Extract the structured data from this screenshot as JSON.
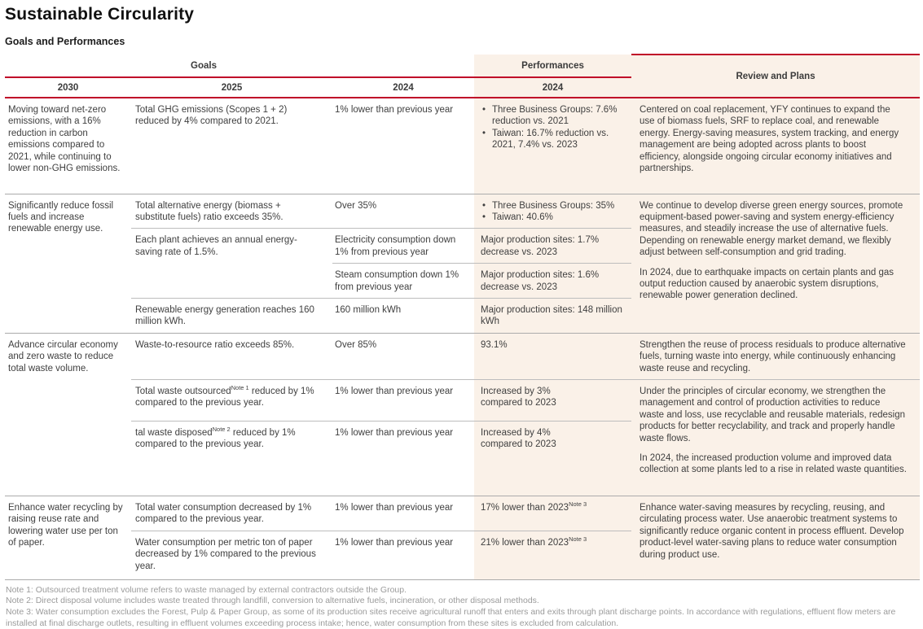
{
  "page": {
    "title": "Sustainable Circularity",
    "subtitle": "Goals and Performances"
  },
  "colors": {
    "accent_red": "#C00428",
    "panel_peach": "#FAF1E8",
    "divider_gray": "#ABABAB",
    "notes_gray": "#9B9B9B"
  },
  "header": {
    "goals": "Goals",
    "performances": "Performances",
    "review": "Review and Plans",
    "col_2030": "2030",
    "col_2025": "2025",
    "col_2024_goal": "2024",
    "col_2024_perf": "2024"
  },
  "sections": [
    {
      "goal": "Moving toward net-zero emissions, with a 16% reduction in carbon emissions compared to 2021, while continuing to lower non-GHG emissions.",
      "review": [
        "Centered on coal replacement, YFY continues to expand the use of biomass fuels, SRF to replace coal, and renewable energy. Energy-saving measures, system tracking, and energy management are being adopted across plants to boost efficiency, alongside ongoing circular economy initiatives and partnerships."
      ],
      "rows": [
        {
          "g2025": "Total GHG emissions (Scopes 1 + 2) reduced by 4% compared to 2021.",
          "g2024": "1% lower than previous year",
          "perf_bullets": [
            "Three Business Groups: 7.6% reduction vs. 2021",
            "Taiwan: 16.7% reduction vs. 2021, 7.4% vs. 2023"
          ]
        }
      ]
    },
    {
      "goal": "Significantly reduce fossil fuels and increase renewable energy use.",
      "review": [
        "We continue to develop diverse green energy sources, promote equipment-based power-saving and system energy-efficiency measures, and steadily increase the use of alternative fuels. Depending on renewable energy market demand, we flexibly adjust between self-consumption and grid trading.",
        "In 2024, due to earthquake impacts on certain plants and gas output reduction caused by anaerobic system disruptions, renewable power generation declined."
      ],
      "rows": [
        {
          "g2025": "Total alternative energy (biomass + substitute fuels) ratio exceeds 35%.",
          "g2024": "Over 35%",
          "perf_bullets": [
            "Three Business Groups: 35%",
            "Taiwan: 40.6%"
          ]
        },
        {
          "g2025": "Each plant achieves an annual energy-saving rate of 1.5%.",
          "g2024": "Electricity consumption down 1% from previous year",
          "perf": "Major production sites: 1.7% decrease vs. 2023"
        },
        {
          "g2024": "Steam consumption down 1% from previous year",
          "perf": "Major production sites: 1.6% decrease vs. 2023"
        },
        {
          "g2025": "Renewable energy generation reaches 160 million kWh.",
          "g2024": "160 million kWh",
          "perf": "Major production sites: 148 million kWh"
        }
      ]
    },
    {
      "goal": "Advance circular economy and zero waste to reduce total waste volume.",
      "rows": [
        {
          "g2025": "Waste-to-resource ratio exceeds 85%.",
          "g2024": "Over 85%",
          "perf": "93.1%",
          "review": [
            "Strengthen the reuse of process residuals to produce alternative fuels, turning waste into energy, while continuously enhancing waste reuse and recycling."
          ]
        },
        {
          "g2025_rich": [
            "Total waste outsourced",
            {
              "sup": "Note 1"
            },
            " reduced by 1% compared to the previous year."
          ],
          "g2024": "1% lower than previous year",
          "perf": "Increased by 3% compared to 2023"
        },
        {
          "g2025_rich": [
            "tal waste disposed",
            {
              "sup": "Note 2"
            },
            " reduced by 1% compared to the previous year."
          ],
          "g2024": "1% lower than previous year",
          "perf": "Increased by 4% compared to 2023"
        }
      ],
      "review_bc": [
        "Under the principles of circular economy, we strengthen the management and control of production activities to reduce waste and loss, use recyclable and reusable materials, redesign products for better recyclability, and track and properly handle waste flows.",
        "In 2024, the increased production volume and improved data collection at some plants led to a rise in related waste quantities."
      ]
    },
    {
      "goal": "Enhance water recycling by raising reuse rate and lowering water use per ton of paper.",
      "review": [
        "Enhance water-saving measures by recycling, reusing, and circulating process water. Use anaerobic treatment systems to significantly reduce organic content in process effluent. Develop product-level water-saving plans to reduce water consumption during product use."
      ],
      "rows": [
        {
          "g2025": "Total water consumption decreased by 1% compared to the previous year.",
          "g2024": "1% lower than previous year",
          "perf_rich": [
            "17% lower than 2023",
            {
              "sup": "Note 3"
            }
          ]
        },
        {
          "g2025": "Water consumption per metric ton of paper decreased by 1% compared to the previous year.",
          "g2024": "1% lower than previous year",
          "perf_rich": [
            "21% lower than 2023",
            {
              "sup": "Note 3"
            }
          ]
        }
      ]
    }
  ],
  "notes": [
    "Note 1: Outsourced treatment volume refers to waste managed by external contractors outside the Group.",
    "Note 2: Direct disposal volume includes waste treated through landfill, conversion to alternative fuels, incineration, or other disposal methods.",
    "Note 3: Water consumption excludes the Forest, Pulp & Paper Group, as some of its production sites receive agricultural runoff that enters and exits through plant discharge points. In accordance with regulations, effluent flow meters are installed at final discharge outlets, resulting in effluent volumes exceeding process intake; hence, water consumption from these sites is excluded from calculation."
  ]
}
